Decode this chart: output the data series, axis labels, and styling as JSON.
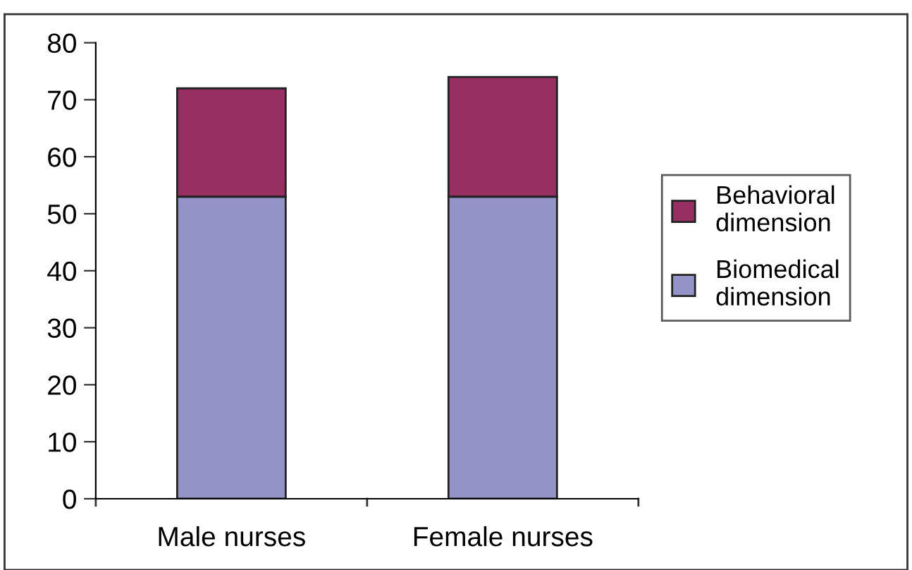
{
  "chart_data": {
    "type": "bar",
    "stacked": true,
    "categories": [
      "Male nurses",
      "Female nurses"
    ],
    "series": [
      {
        "name": "Biomedical\ndimension",
        "color": "#9493c8",
        "values": [
          53,
          53
        ]
      },
      {
        "name": "Behavioral\ndimension",
        "color": "#982f62",
        "values": [
          19,
          21
        ]
      }
    ],
    "ylim": [
      0,
      80
    ],
    "yticks": [
      0,
      10,
      20,
      30,
      40,
      50,
      60,
      70,
      80
    ],
    "grid": false,
    "legend": "right"
  }
}
